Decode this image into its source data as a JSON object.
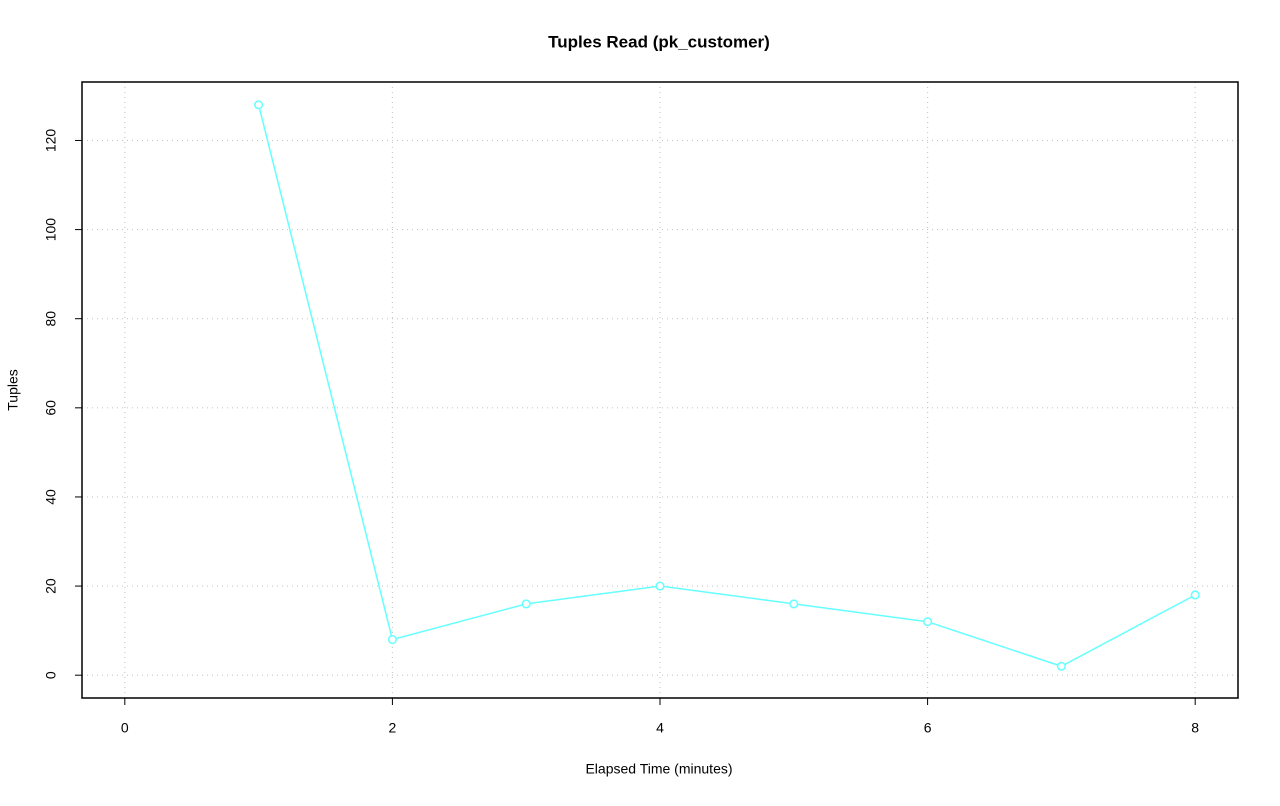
{
  "chart_data": {
    "type": "line",
    "title": "Tuples Read (pk_customer)",
    "x_label": "Elapsed Time (minutes)",
    "y_label": "Tuples",
    "x": [
      1,
      2,
      3,
      4,
      5,
      6,
      7,
      8
    ],
    "series": [
      {
        "name": "pk_customer",
        "color": "#66ffff",
        "values": [
          128,
          8,
          16,
          20,
          16,
          12,
          2,
          18
        ]
      }
    ],
    "xlim": [
      -0.32,
      8.32
    ],
    "xticks": [
      0,
      2,
      4,
      6,
      8
    ],
    "ylim": [
      -5.12,
      133.12
    ],
    "yticks": [
      0,
      20,
      40,
      60,
      80,
      100,
      120
    ],
    "grid": true
  }
}
